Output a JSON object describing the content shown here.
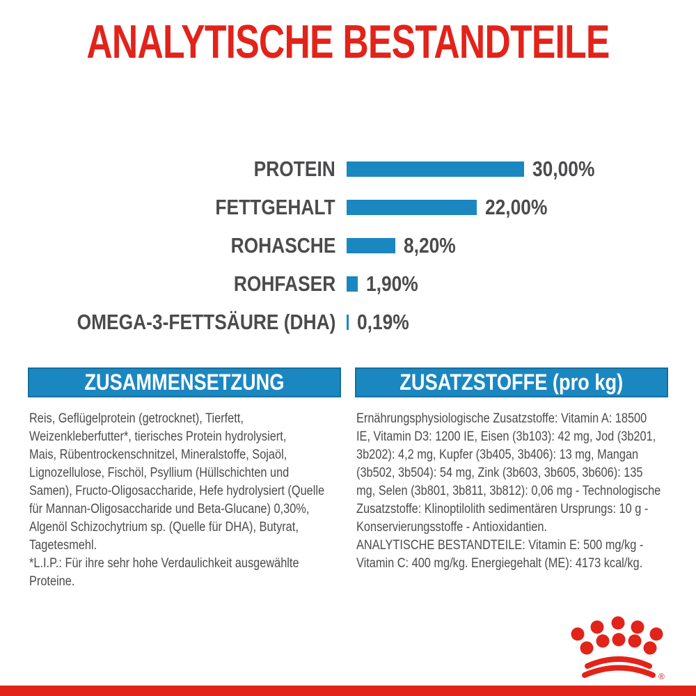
{
  "title": "ANALYTISCHE BESTANDTEILE",
  "chart_data": {
    "type": "bar",
    "orientation": "horizontal",
    "categories": [
      "PROTEIN",
      "FETTGEHALT",
      "ROHASCHE",
      "ROHFASER",
      "OMEGA-3-FETTSÄURE (DHA)"
    ],
    "values": [
      30.0,
      22.0,
      8.2,
      1.9,
      0.19
    ],
    "value_labels": [
      "30,00%",
      "22,00%",
      "8,20%",
      "1,90%",
      "0,19%"
    ],
    "xlim": [
      0,
      30
    ],
    "grid": false,
    "legend": false,
    "bar_color": "#1b87c1",
    "label_color": "#4b4b4d"
  },
  "sections": {
    "composition": {
      "header": "ZUSAMMENSETZUNG",
      "body": "Reis, Geflügelprotein (getrocknet), Tierfett,\nWeizenkleberfutter*, tierisches Protein hydrolysiert,\nMais, Rübentrockenschnitzel, Mineralstoffe, Sojaöl,\nLignozellulose, Fischöl, Psyllium (Hüllschichten und\nSamen), Fructo-Oligosaccharide, Hefe hydrolysiert (Quelle\nfür Mannan-Oligosaccharide und Beta-Glucane) 0,30%,\nAlgenöl Schizochytrium sp. (Quelle für DHA), Butyrat,\nTagetesmehl.\n*L.I.P.: Für ihre sehr hohe Verdaulichkeit ausgewählte\nProteine."
    },
    "additives": {
      "header": "ZUSATZSTOFFE (pro kg)",
      "body": "Ernährungsphysiologische Zusatzstoffe: Vitamin A: 18500\nIE, Vitamin D3: 1200 IE, Eisen (3b103): 42 mg, Jod (3b201,\n3b202): 4,2 mg, Kupfer (3b405, 3b406): 13 mg, Mangan\n(3b502, 3b504): 54 mg, Zink (3b603, 3b605, 3b606): 135\nmg, Selen (3b801, 3b811, 3b812): 0,06 mg - Technologische\nZusatzstoffe: Klinoptilolith sedimentären Ursprungs: 10 g -\nKonservierungsstoffe - Antioxidantien.\nANALYTISCHE BESTANDTEILE: Vitamin E: 500 mg/kg -\nVitamin C: 400 mg/kg. Energiegehalt (ME): 4173 kcal/kg."
    }
  },
  "footer": {
    "logo_name": "royal-canin-crown-logo",
    "registered_mark": "®"
  },
  "colors": {
    "brand_red": "#e2231a",
    "chart_blue": "#1b87c1",
    "header_blue": "#1b87c1",
    "header_blue_edge": "#146f9e",
    "text_gray": "#4b4b4d"
  }
}
